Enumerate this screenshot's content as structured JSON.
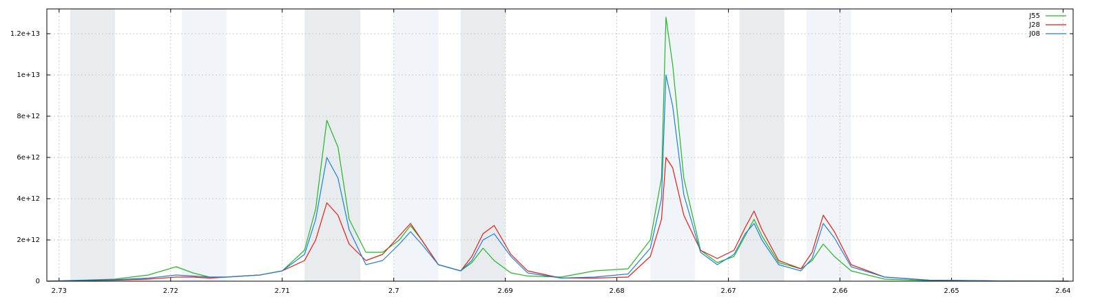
{
  "chart_data": {
    "type": "line",
    "xlim": [
      2.7311,
      2.6391
    ],
    "xticks": [
      2.73,
      2.72,
      2.71,
      2.7,
      2.69,
      2.68,
      2.67,
      2.66,
      2.65,
      2.64
    ],
    "ylim": [
      0,
      13200000000000.0
    ],
    "yticks": [
      0,
      {
        "value": 2000000000000.0,
        "label": "2e+12"
      },
      {
        "value": 4000000000000.0,
        "label": "4e+12"
      },
      {
        "value": 6000000000000.0,
        "label": "6e+12"
      },
      {
        "value": 8000000000000.0,
        "label": "8e+12"
      },
      {
        "value": 10000000000000.0,
        "label": "1e+13"
      },
      {
        "value": 12000000000000.0,
        "label": "1.2e+13"
      }
    ],
    "grid": true,
    "legend": "top-right",
    "bands": [
      [
        2.729,
        2.725
      ],
      [
        2.719,
        2.715
      ],
      [
        2.708,
        2.703
      ],
      [
        2.7,
        2.696
      ],
      [
        2.694,
        2.69
      ],
      [
        2.677,
        2.673
      ],
      [
        2.669,
        2.665
      ],
      [
        2.663,
        2.659
      ]
    ],
    "band_colors": [
      "#e8ecef",
      "#f1f5fa",
      "#e8ecef",
      "#f1f5fa",
      "#e8ecef",
      "#f1f5fa",
      "#e8ecef",
      "#f1f5fa"
    ],
    "x": [
      2.731,
      2.728,
      2.725,
      2.722,
      2.7195,
      2.718,
      2.7165,
      2.715,
      2.712,
      2.71,
      2.708,
      2.707,
      2.706,
      2.705,
      2.704,
      2.7025,
      2.701,
      2.6995,
      2.6985,
      2.6975,
      2.696,
      2.694,
      2.693,
      2.692,
      2.691,
      2.6895,
      2.688,
      2.685,
      2.682,
      2.679,
      2.677,
      2.676,
      2.6756,
      2.675,
      2.674,
      2.6725,
      2.671,
      2.6695,
      2.6685,
      2.6677,
      2.667,
      2.6655,
      2.6635,
      2.6625,
      2.6615,
      2.6605,
      2.659,
      2.656,
      2.652,
      2.645,
      2.6395
    ],
    "series": [
      {
        "name": "J55",
        "color": "#1fb81f",
        "values": [
          0,
          50000000000.0,
          100000000000.0,
          300000000000.0,
          700000000000.0,
          400000000000.0,
          200000000000.0,
          200000000000.0,
          300000000000.0,
          500000000000.0,
          1500000000000.0,
          3500000000000.0,
          7800000000000.0,
          6500000000000.0,
          3000000000000.0,
          1400000000000.0,
          1400000000000.0,
          2000000000000.0,
          2700000000000.0,
          2000000000000.0,
          800000000000.0,
          500000000000.0,
          900000000000.0,
          1600000000000.0,
          1000000000000.0,
          400000000000.0,
          250000000000.0,
          200000000000.0,
          500000000000.0,
          600000000000.0,
          2000000000000.0,
          5000000000000.0,
          12800000000000.0,
          10500000000000.0,
          5000000000000.0,
          1500000000000.0,
          900000000000.0,
          1200000000000.0,
          2200000000000.0,
          3000000000000.0,
          2200000000000.0,
          900000000000.0,
          600000000000.0,
          1000000000000.0,
          1800000000000.0,
          1200000000000.0,
          500000000000.0,
          100000000000.0,
          30000000000.0,
          10000000000.0,
          0
        ]
      },
      {
        "name": "J28",
        "color": "#e8190e",
        "values": [
          0,
          30000000000.0,
          50000000000.0,
          100000000000.0,
          200000000000.0,
          200000000000.0,
          150000000000.0,
          200000000000.0,
          300000000000.0,
          500000000000.0,
          1000000000000.0,
          2000000000000.0,
          3800000000000.0,
          3200000000000.0,
          1800000000000.0,
          1000000000000.0,
          1300000000000.0,
          2200000000000.0,
          2800000000000.0,
          2000000000000.0,
          800000000000.0,
          500000000000.0,
          1200000000000.0,
          2300000000000.0,
          2700000000000.0,
          1300000000000.0,
          500000000000.0,
          150000000000.0,
          150000000000.0,
          200000000000.0,
          1200000000000.0,
          3000000000000.0,
          6000000000000.0,
          5500000000000.0,
          3200000000000.0,
          1500000000000.0,
          1100000000000.0,
          1500000000000.0,
          2600000000000.0,
          3400000000000.0,
          2500000000000.0,
          1000000000000.0,
          600000000000.0,
          1400000000000.0,
          3200000000000.0,
          2400000000000.0,
          800000000000.0,
          200000000000.0,
          50000000000.0,
          10000000000.0,
          0
        ]
      },
      {
        "name": "J08",
        "color": "#1a7fe0",
        "values": [
          0,
          40000000000.0,
          70000000000.0,
          150000000000.0,
          300000000000.0,
          250000000000.0,
          200000000000.0,
          200000000000.0,
          300000000000.0,
          500000000000.0,
          1300000000000.0,
          3000000000000.0,
          6000000000000.0,
          5000000000000.0,
          2500000000000.0,
          800000000000.0,
          1000000000000.0,
          1800000000000.0,
          2400000000000.0,
          1800000000000.0,
          800000000000.0,
          500000000000.0,
          1000000000000.0,
          2000000000000.0,
          2300000000000.0,
          1200000000000.0,
          400000000000.0,
          150000000000.0,
          200000000000.0,
          350000000000.0,
          1600000000000.0,
          4000000000000.0,
          10000000000000.0,
          8500000000000.0,
          4200000000000.0,
          1400000000000.0,
          800000000000.0,
          1300000000000.0,
          2300000000000.0,
          2800000000000.0,
          2000000000000.0,
          800000000000.0,
          500000000000.0,
          1100000000000.0,
          2800000000000.0,
          2100000000000.0,
          700000000000.0,
          200000000000.0,
          50000000000.0,
          10000000000.0,
          0
        ]
      }
    ]
  }
}
